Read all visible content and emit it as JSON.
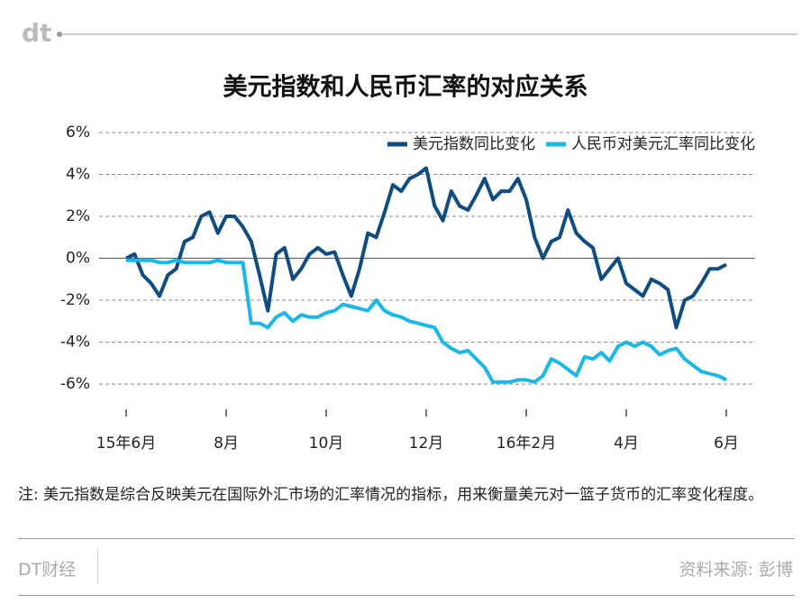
{
  "logo": "dt",
  "note": "注: 美元指数是综合反映美元在国际外汇市场的汇率情况的指标，用来衡量美元对一篮子货币的汇率变化程度。",
  "footer": {
    "brand": "DT财经",
    "source": "资料来源: 彭博"
  },
  "chart_data": {
    "type": "line",
    "title": "美元指数和人民币汇率的对应关系",
    "categories": [
      "15年6月",
      null,
      null,
      null,
      null,
      null,
      null,
      null,
      null,
      null,
      null,
      null,
      "8月",
      null,
      null,
      null,
      null,
      null,
      null,
      null,
      null,
      null,
      null,
      null,
      "10月",
      null,
      null,
      null,
      null,
      null,
      null,
      null,
      null,
      null,
      null,
      null,
      "12月",
      null,
      null,
      null,
      null,
      null,
      null,
      null,
      null,
      null,
      null,
      null,
      "16年2月",
      null,
      null,
      null,
      null,
      null,
      null,
      null,
      null,
      null,
      null,
      null,
      "4月",
      null,
      null,
      null,
      null,
      null,
      null,
      null,
      null,
      null,
      null,
      null,
      "6月"
    ],
    "series": [
      {
        "name": "美元指数同比变化",
        "color": "#0f4c81",
        "values": [
          0,
          0.2,
          -0.8,
          -1.2,
          -1.8,
          -0.8,
          -0.5,
          0.8,
          1.0,
          2.0,
          2.2,
          1.2,
          2.0,
          2.0,
          1.5,
          0.8,
          -0.8,
          -2.5,
          0.2,
          0.5,
          -1.0,
          -0.5,
          0.2,
          0.5,
          0.2,
          0.3,
          -0.8,
          -1.8,
          -0.5,
          1.2,
          1.0,
          2.2,
          3.5,
          3.2,
          3.8,
          4.0,
          4.3,
          2.5,
          1.8,
          3.2,
          2.5,
          2.3,
          3.0,
          3.8,
          2.8,
          3.2,
          3.2,
          3.8,
          2.8,
          1.0,
          0.0,
          0.8,
          1.0,
          2.3,
          1.2,
          0.8,
          0.5,
          -1.0,
          -0.5,
          0.0,
          -1.2,
          -1.5,
          -1.8,
          -1.0,
          -1.2,
          -1.5,
          -3.3,
          -2.0,
          -1.8,
          -1.2,
          -0.5,
          -0.5,
          -0.3
        ]
      },
      {
        "name": "人民币对美元汇率同比变化",
        "color": "#1ab8e8",
        "values": [
          -0.1,
          -0.1,
          -0.1,
          -0.1,
          -0.2,
          -0.2,
          -0.1,
          -0.2,
          -0.2,
          -0.2,
          -0.2,
          -0.1,
          -0.2,
          -0.2,
          -0.2,
          -3.1,
          -3.1,
          -3.3,
          -2.8,
          -2.6,
          -3.0,
          -2.7,
          -2.8,
          -2.8,
          -2.6,
          -2.5,
          -2.2,
          -2.3,
          -2.4,
          -2.5,
          -2.0,
          -2.5,
          -2.7,
          -2.8,
          -3.0,
          -3.1,
          -3.2,
          -3.3,
          -4.0,
          -4.3,
          -4.5,
          -4.4,
          -4.8,
          -5.2,
          -5.9,
          -5.9,
          -5.9,
          -5.8,
          -5.8,
          -5.9,
          -5.6,
          -4.8,
          -5.0,
          -5.3,
          -5.6,
          -4.7,
          -4.8,
          -4.5,
          -4.9,
          -4.2,
          -4.0,
          -4.2,
          -4.0,
          -4.2,
          -4.6,
          -4.4,
          -4.3,
          -4.8,
          -5.1,
          -5.4,
          -5.5,
          -5.6,
          -5.8
        ]
      }
    ],
    "ylim": [
      -7.2,
      6.6
    ],
    "yticks": [
      {
        "value": 6,
        "label": "6%"
      },
      {
        "value": 4,
        "label": "4%"
      },
      {
        "value": 2,
        "label": "2%"
      },
      {
        "value": 0,
        "label": "0%"
      },
      {
        "value": -2,
        "label": "-2%"
      },
      {
        "value": -4,
        "label": "-4%"
      },
      {
        "value": -6,
        "label": "-6%"
      }
    ],
    "grid": true,
    "legend": "top-right"
  }
}
